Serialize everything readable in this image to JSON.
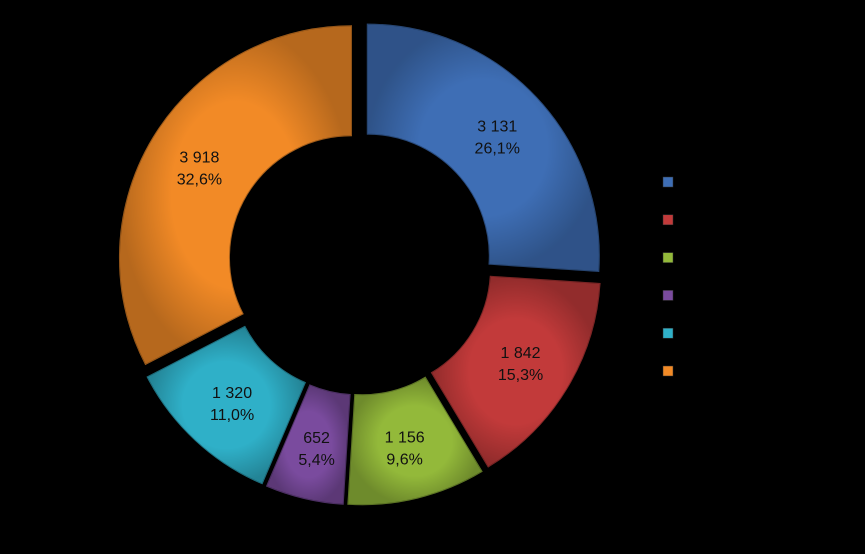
{
  "chart_data": {
    "type": "pie",
    "variant": "doughnut",
    "title": "",
    "categories": [
      "",
      "",
      "",
      "",
      "",
      ""
    ],
    "values": [
      3131,
      1842,
      1156,
      652,
      1320,
      3918
    ],
    "value_labels": [
      "3 131",
      "1 842",
      "1 156",
      "652",
      "1 320",
      "3 918"
    ],
    "percent_labels": [
      "26,1%",
      "15,3%",
      "9,6%",
      "5,4%",
      "11,0%",
      "32,6%"
    ],
    "colors": [
      "#3e6eb5",
      "#c23a3a",
      "#93b93a",
      "#7a4b9e",
      "#2fb0c8",
      "#f28a26"
    ],
    "legend": {
      "position": "right",
      "labels": [
        "",
        "",
        "",
        "",
        "",
        ""
      ]
    },
    "background": "#000000"
  }
}
